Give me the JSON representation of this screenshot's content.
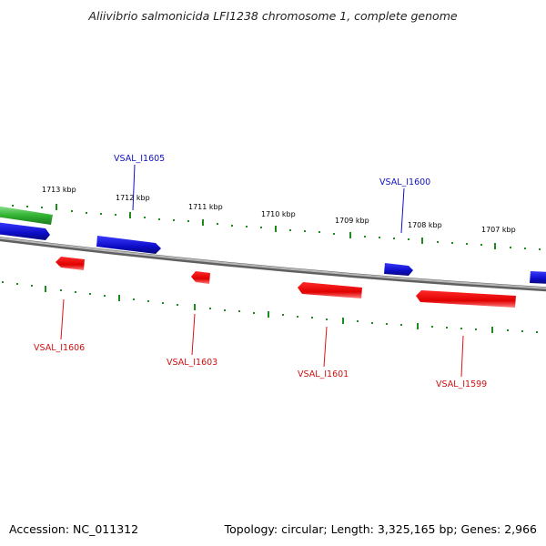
{
  "title": "Aliivibrio salmonicida LFI1238 chromosome 1, complete genome",
  "footer": {
    "accession": "Accession: NC_011312",
    "summary": "Topology: circular; Length: 3,325,165 bp; Genes: 2,966"
  },
  "colors": {
    "forward_gene": "#1010d0",
    "reverse_gene": "#e01010",
    "highlight_gene": "#30b030",
    "tick": "#1c8c1c",
    "backbone": "#808080"
  },
  "ruler": [
    {
      "label": "1713 kbp"
    },
    {
      "label": "1712 kbp"
    },
    {
      "label": "1711 kbp"
    },
    {
      "label": "1710 kbp"
    },
    {
      "label": "1709 kbp"
    },
    {
      "label": "1708 kbp"
    },
    {
      "label": "1707 kbp"
    }
  ],
  "gene_labels": {
    "forward": [
      {
        "label": "VSAL_I1605"
      },
      {
        "label": "VSAL_I1600"
      }
    ],
    "reverse": [
      {
        "label": "VSAL_I1606"
      },
      {
        "label": "VSAL_I1603"
      },
      {
        "label": "VSAL_I1601"
      },
      {
        "label": "VSAL_I1599"
      }
    ]
  }
}
